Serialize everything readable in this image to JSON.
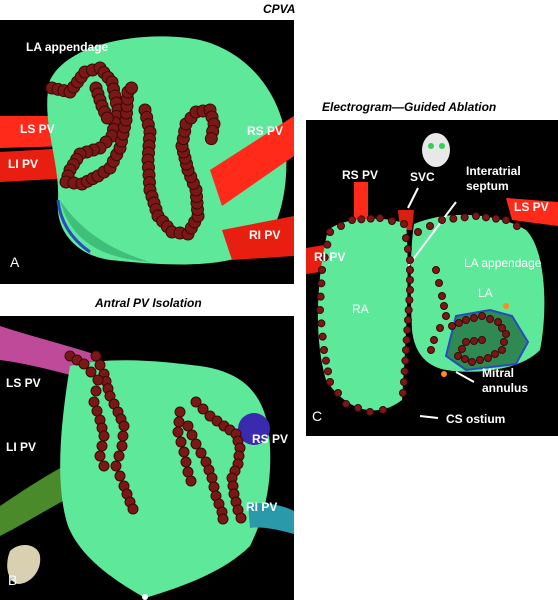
{
  "panel_a": {
    "title": "CPVA",
    "letter": "A",
    "labels": {
      "la_appendage": "LA appendage",
      "ls_pv": "LS PV",
      "li_pv": "LI PV",
      "rs_pv": "RS PV",
      "ri_pv": "RI PV"
    }
  },
  "panel_b": {
    "title": "Antral PV Isolation",
    "letter": "B",
    "labels": {
      "ls_pv": "LS PV",
      "li_pv": "LI PV",
      "rs_pv": "RS PV",
      "ri_pv": "RI PV"
    }
  },
  "panel_c": {
    "title": "Electrogram—Guided Ablation",
    "letter": "C",
    "labels": {
      "rs_pv": "RS PV",
      "svc": "SVC",
      "interatrial": "Interatrial",
      "septum": "septum",
      "ls_pv": "LS PV",
      "ri_pv": "RI PV",
      "la_appendage": "LA appendage",
      "ra": "RA",
      "la": "LA",
      "mitral": "Mitral",
      "annulus": "annulus",
      "cs_ostium": "CS ostium"
    }
  },
  "colors": {
    "tissue": "#5ee89a",
    "vein": "#ff2a1a",
    "lesion": "#7a1818",
    "panel_bg": "#000000"
  }
}
